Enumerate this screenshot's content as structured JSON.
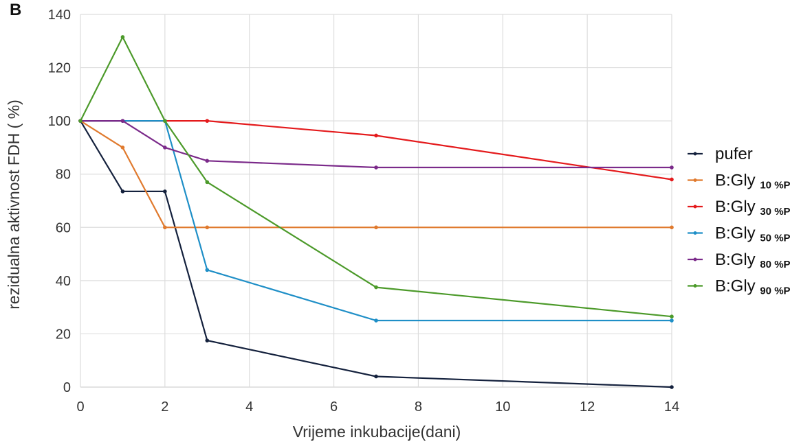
{
  "panel_label": "B",
  "chart_data": {
    "type": "line",
    "xlabel": "Vrijeme inkubacije(dani)",
    "ylabel": "rezidualna aktivnost FDH ( %)",
    "xlim": [
      0,
      14
    ],
    "ylim": [
      0,
      140
    ],
    "xticks": [
      0,
      2,
      4,
      6,
      8,
      10,
      12,
      14
    ],
    "yticks": [
      0,
      20,
      40,
      60,
      80,
      100,
      120,
      140
    ],
    "x": [
      0,
      1,
      2,
      3,
      7,
      14
    ],
    "grid": true,
    "legend_position": "right",
    "series": [
      {
        "name": "pufer",
        "name_main": "pufer",
        "name_sub": "",
        "color": "#14213d",
        "values": [
          100,
          73.5,
          73.5,
          17.5,
          4,
          0
        ]
      },
      {
        "name": "B:Gly 10 %P",
        "name_main": "B:Gly ",
        "name_sub": "10 %P",
        "color": "#e07a2e",
        "values": [
          100,
          90,
          60,
          60,
          60,
          60
        ]
      },
      {
        "name": "B:Gly 30 %P",
        "name_main": "B:Gly ",
        "name_sub": "30 %P",
        "color": "#e41a1c",
        "values": [
          100,
          100,
          100,
          100,
          94.5,
          78
        ]
      },
      {
        "name": "B:Gly 50 %P",
        "name_main": "B:Gly ",
        "name_sub": "50 %P",
        "color": "#1f8fc7",
        "values": [
          100,
          100,
          100,
          44,
          25,
          25
        ]
      },
      {
        "name": "B:Gly 80 %P",
        "name_main": "B:Gly ",
        "name_sub": "80 %P",
        "color": "#7b2a8a",
        "values": [
          100,
          100,
          90,
          85,
          82.5,
          82.5
        ]
      },
      {
        "name": "B:Gly 90 %P",
        "name_main": "B:Gly ",
        "name_sub": "90 %P",
        "color": "#4c9a2a",
        "values": [
          100,
          131.5,
          100,
          77,
          37.5,
          26.5
        ]
      }
    ]
  }
}
